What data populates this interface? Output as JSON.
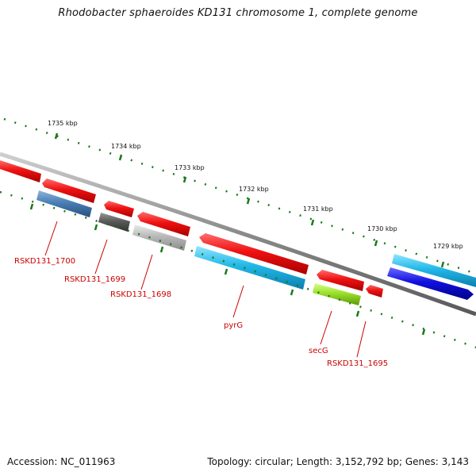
{
  "title": "Rhodobacter sphaeroides KD131 chromosome 1, complete genome",
  "footer": {
    "accession": "Accession: NC_011963",
    "summary": "Topology: circular; Length: 3,152,792 bp; Genes: 3,143"
  },
  "scale": {
    "unit": "kbp",
    "labels": [
      "1735 kbp",
      "1734 kbp",
      "1733 kbp",
      "1732 kbp",
      "1731 kbp",
      "1730 kbp",
      "1729 kbp"
    ],
    "tick_color": "#1a7a1a"
  },
  "genes": [
    {
      "id": "RSKD131_1700",
      "label": "RSKD131_1700",
      "color": "#4a7fb5"
    },
    {
      "id": "RSKD131_1699",
      "label": "RSKD131_1699",
      "color": "#5a5a5a"
    },
    {
      "id": "RSKD131_1698",
      "label": "RSKD131_1698",
      "color": "#b8b8b8"
    },
    {
      "id": "pyrG",
      "label": "pyrG",
      "color": "#22b8e8"
    },
    {
      "id": "secG",
      "label": "secG",
      "color": "#9be02a"
    },
    {
      "id": "RSKD131_1695",
      "label": "RSKD131_1695",
      "color": "#ee1111"
    }
  ],
  "colors": {
    "backbone": "#8a8a8a",
    "red_cds": "#ee1111",
    "light_blue_cds": "#22b8e8",
    "dark_blue_cds": "#1010e0",
    "label": "#cc0000"
  }
}
